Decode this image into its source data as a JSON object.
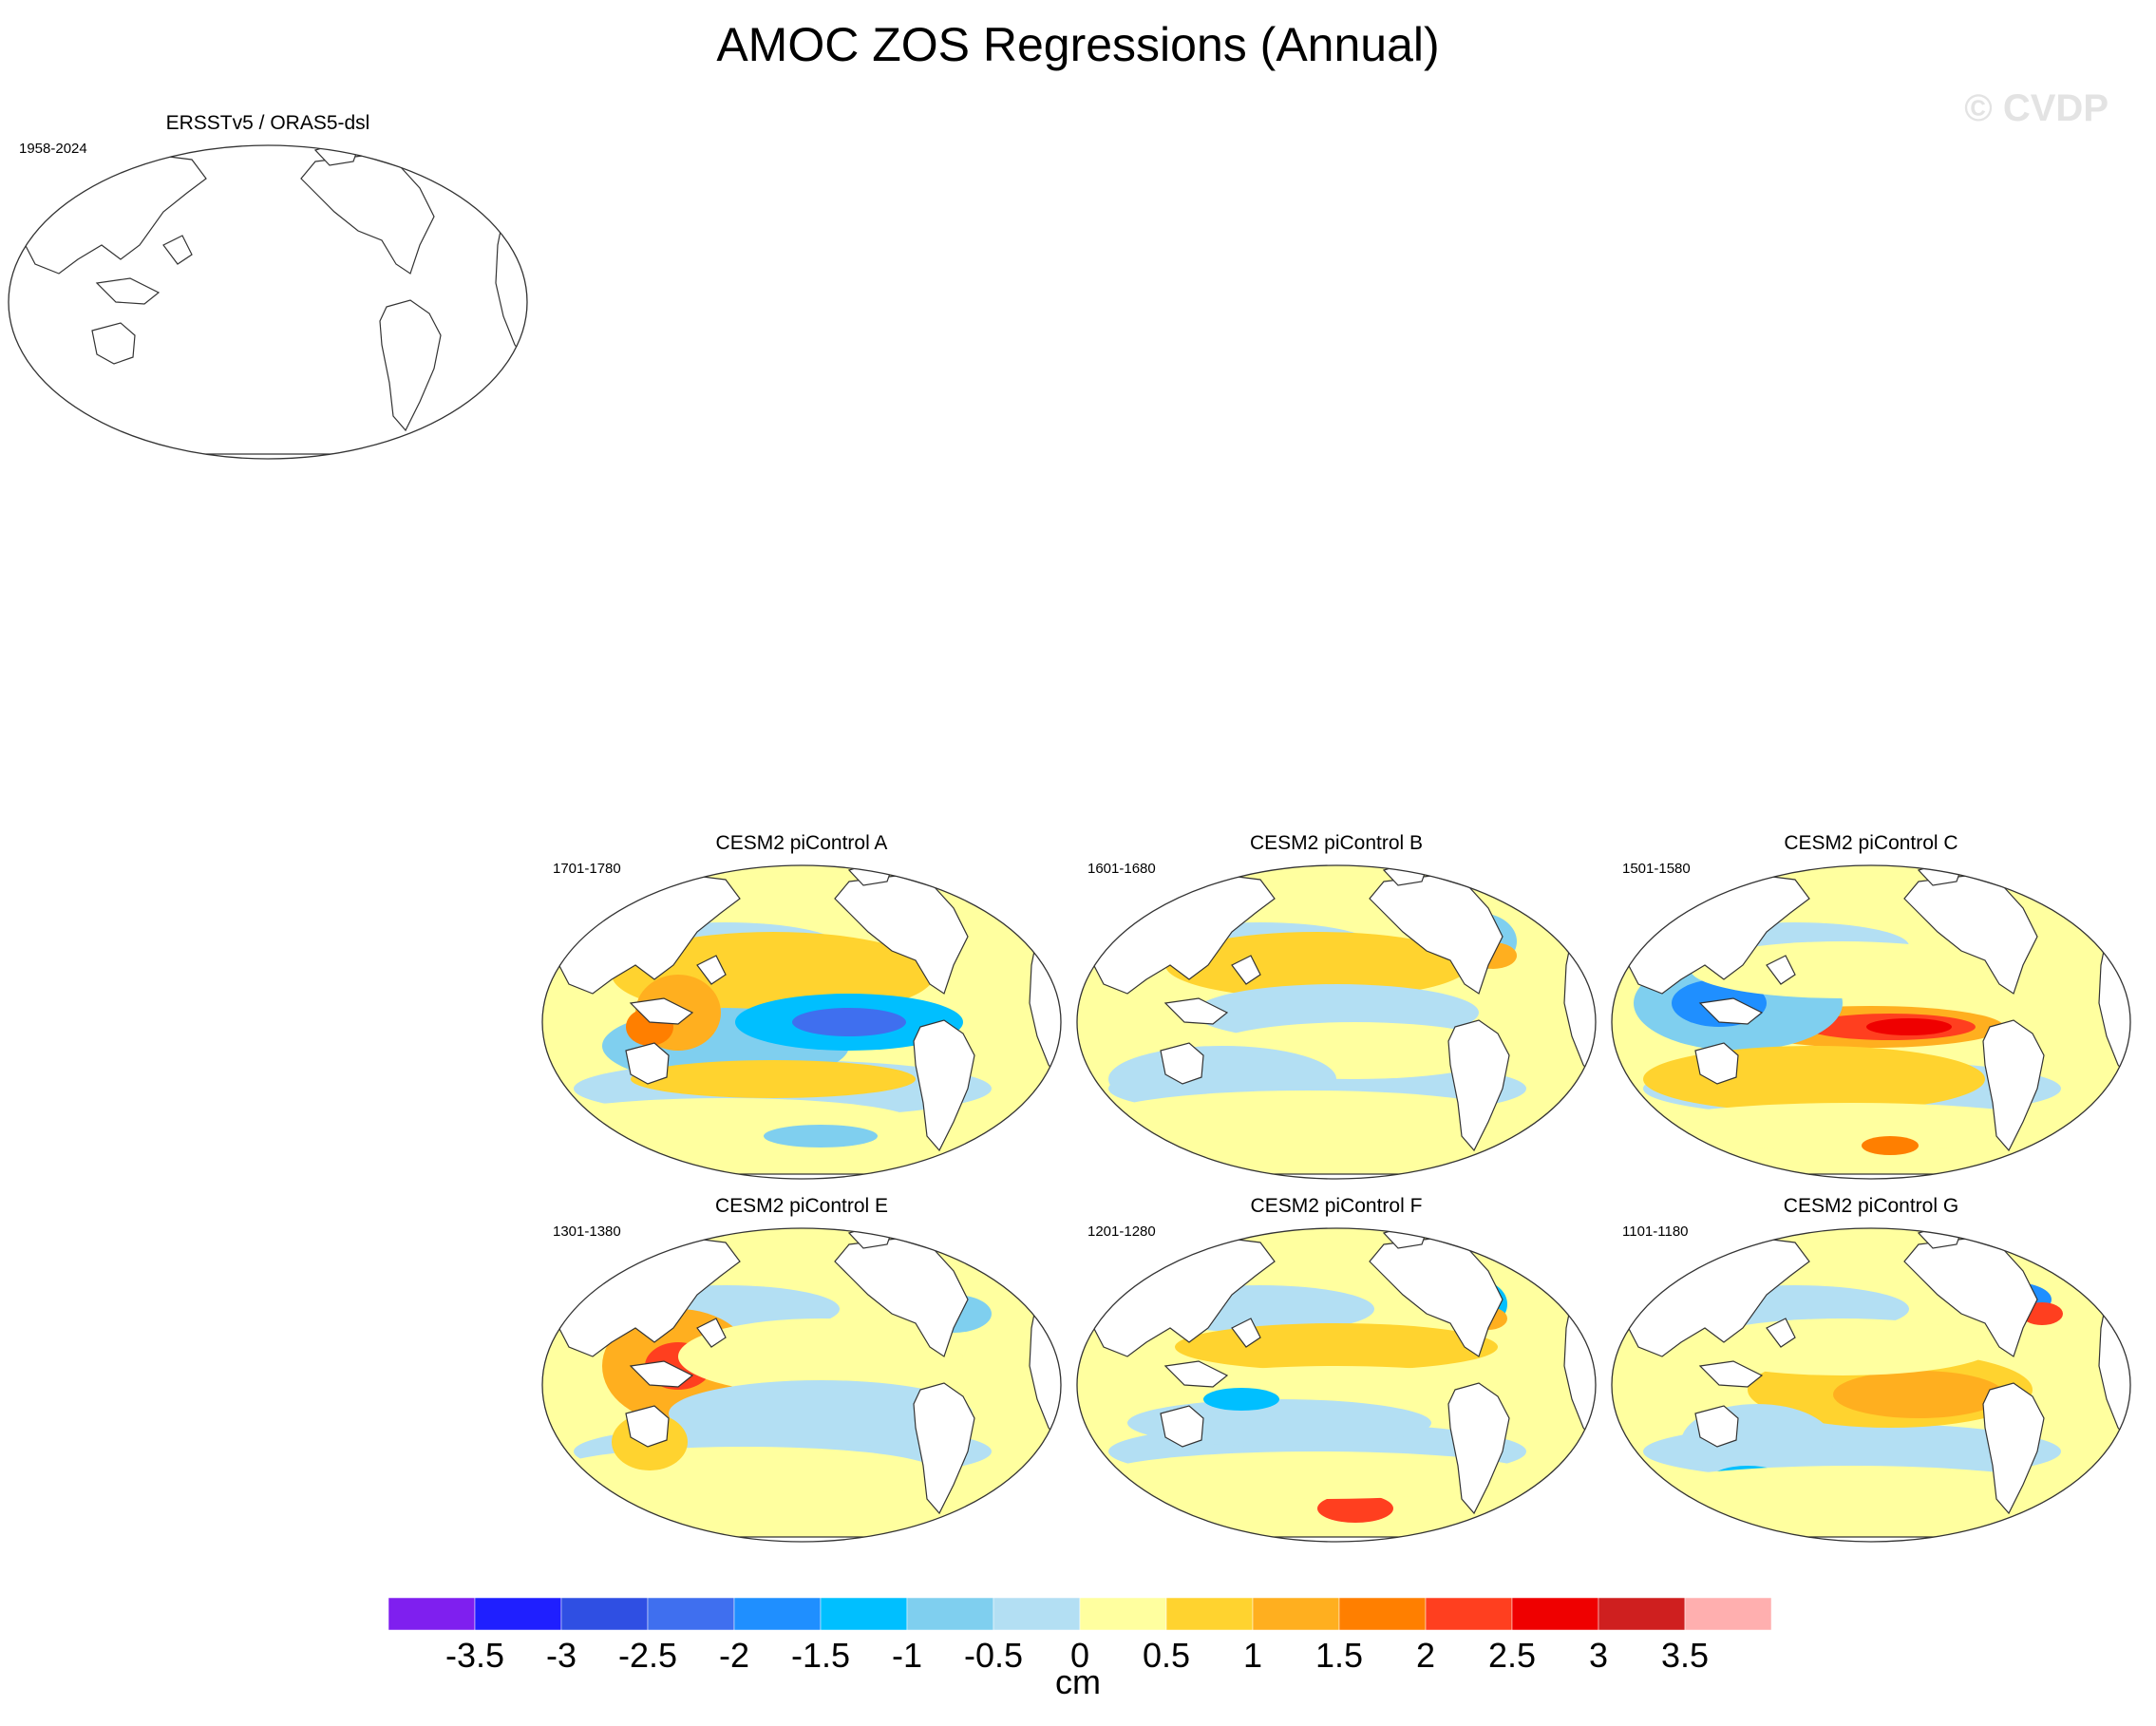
{
  "title": "AMOC ZOS Regressions (Annual)",
  "watermark": "© CVDP",
  "observation_panel": {
    "title": "ERSSTv5 / ORAS5-dsl",
    "years": "1958-2024",
    "data": "no data shown"
  },
  "model_panels": [
    {
      "title": "CESM2 piControl A",
      "years": "1701-1780",
      "pattern": "negative east Pacific"
    },
    {
      "title": "CESM2 piControl B",
      "years": "1601-1680",
      "pattern": "north Atlantic dipole"
    },
    {
      "title": "CESM2 piControl C",
      "years": "1501-1580",
      "pattern": "strong positive east Pacific"
    },
    {
      "title": "CESM2 piControl E",
      "years": "1301-1380",
      "pattern": "positive west Pacific"
    },
    {
      "title": "CESM2 piControl F",
      "years": "1201-1280",
      "pattern": "weak banded"
    },
    {
      "title": "CESM2 piControl G",
      "years": "1101-1180",
      "pattern": "positive east Pacific, north Atlantic dipole"
    }
  ],
  "colorbar": {
    "units": "cm",
    "labels": [
      "-3.5",
      "-3",
      "-2.5",
      "-2",
      "-1.5",
      "-1",
      "-0.5",
      "0",
      "0.5",
      "1",
      "1.5",
      "2",
      "2.5",
      "3",
      "3.5"
    ],
    "colors": [
      "#7f1fef",
      "#1f1fff",
      "#2f4fe3",
      "#3f6fef",
      "#1f8fff",
      "#00bfff",
      "#7fcfef",
      "#b3dff3",
      "#ffff9f",
      "#ffd32f",
      "#ffaf1f",
      "#ff7f00",
      "#ff3f1f",
      "#ef0000",
      "#cf1f1f",
      "#ffafaf"
    ]
  }
}
